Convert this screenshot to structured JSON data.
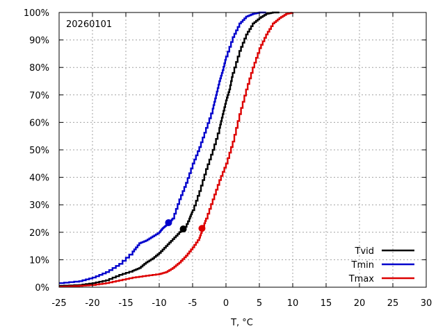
{
  "chart_data": {
    "type": "line",
    "annotation": "20260101",
    "xlabel": "T, °C",
    "ylabel": "",
    "xlim": [
      -25,
      30
    ],
    "ylim": [
      0,
      100
    ],
    "x_ticks": [
      -25,
      -20,
      -15,
      -10,
      -5,
      0,
      5,
      10,
      15,
      20,
      25,
      30
    ],
    "x_tick_labels": [
      "-25",
      "-20",
      "-15",
      "-10",
      "-5",
      "0",
      "5",
      "10",
      "15",
      "20",
      "25",
      "30"
    ],
    "y_ticks": [
      0,
      10,
      20,
      30,
      40,
      50,
      60,
      70,
      80,
      90,
      100
    ],
    "y_tick_labels": [
      "0%",
      "10%",
      "20%",
      "30%",
      "40%",
      "50%",
      "60%",
      "70%",
      "80%",
      "90%",
      "100%"
    ],
    "grid": true,
    "legend_position": "bottom-right",
    "series": [
      {
        "name": "Tvid",
        "color": "#000000",
        "x": [
          -25,
          -22,
          -20,
          -18,
          -16,
          -14,
          -13,
          -12,
          -11,
          -10,
          -9,
          -8,
          -7,
          -6.3,
          -5.5,
          -5,
          -4,
          -3,
          -2,
          -1,
          -0.5,
          0,
          0.5,
          1,
          2,
          3,
          4,
          5,
          6,
          7,
          8
        ],
        "y": [
          0.5,
          0.8,
          1.5,
          2.5,
          4.5,
          6,
          7,
          9,
          10.5,
          12.5,
          15,
          17.5,
          20,
          21,
          25,
          28,
          35,
          43,
          50,
          58,
          63,
          68,
          72,
          78,
          86,
          92,
          96,
          98,
          99.5,
          100,
          100
        ],
        "marker": {
          "x": -6.4,
          "y": 21.2
        }
      },
      {
        "name": "Tmin",
        "color": "#0000cc",
        "x": [
          -25,
          -22,
          -20,
          -18,
          -16,
          -14,
          -13,
          -12,
          -11,
          -10,
          -9.5,
          -9,
          -8.5,
          -8,
          -7,
          -6,
          -5,
          -4,
          -3,
          -2,
          -1.5,
          -1,
          -0.5,
          0,
          1,
          2,
          3,
          4,
          5,
          6
        ],
        "y": [
          1.5,
          2.2,
          3.5,
          5.5,
          8.5,
          13,
          16,
          17,
          18.5,
          20,
          21.5,
          22.5,
          23.5,
          25,
          32,
          38,
          45,
          51,
          58,
          65,
          70,
          75,
          79,
          84,
          91,
          96,
          98.5,
          99.5,
          100,
          100
        ],
        "marker": {
          "x": -8.6,
          "y": 23.5
        }
      },
      {
        "name": "Tmax",
        "color": "#dd0000",
        "x": [
          -25,
          -22,
          -20,
          -18,
          -16,
          -14,
          -12,
          -10,
          -9,
          -8,
          -7,
          -6,
          -5,
          -4,
          -3.5,
          -3,
          -2,
          -1,
          0,
          1,
          2,
          3,
          4,
          5,
          6,
          7,
          8,
          9,
          10
        ],
        "y": [
          0.2,
          0.5,
          0.8,
          1.5,
          2.5,
          3.5,
          4.2,
          4.8,
          5.5,
          7,
          9,
          11.5,
          14.5,
          18,
          21.5,
          25,
          32,
          39,
          45,
          53,
          63,
          72,
          80,
          87,
          92,
          96,
          98,
          99.5,
          100
        ],
        "marker": {
          "x": -3.6,
          "y": 21.4
        }
      }
    ]
  }
}
